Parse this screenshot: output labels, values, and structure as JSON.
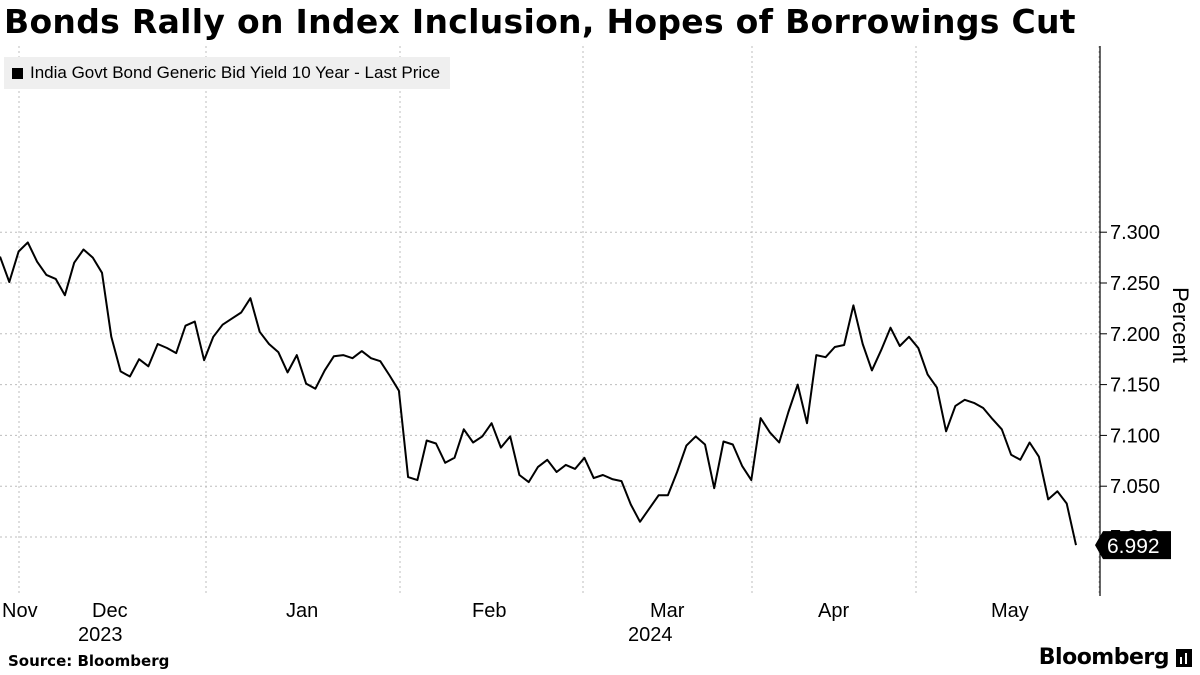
{
  "header": {
    "title": "Bonds Rally on Index Inclusion, Hopes of Borrowings Cut"
  },
  "footer": {
    "source": "Source: Bloomberg",
    "brand": "Bloomberg"
  },
  "chart_data": {
    "type": "line",
    "title": "Bonds Rally on Index Inclusion, Hopes of Borrowings Cut",
    "xlabel": "",
    "ylabel": "Percent",
    "ylim": [
      6.96,
      7.33
    ],
    "yticks": [
      7.0,
      7.05,
      7.1,
      7.15,
      7.2,
      7.25,
      7.3
    ],
    "ytick_labels": [
      "7.000",
      "7.050",
      "7.100",
      "7.150",
      "7.200",
      "7.250",
      "7.300"
    ],
    "grid": true,
    "legend_position": "top-left",
    "month_labels": [
      "Nov",
      "Dec",
      "Jan",
      "Feb",
      "Mar",
      "Apr",
      "May"
    ],
    "year_labels": [
      {
        "label": "2023",
        "under": "Dec"
      },
      {
        "label": "2024",
        "under": "Mar"
      }
    ],
    "last_value_label": "6.992",
    "series": [
      {
        "name": "India Govt Bond Generic Bid Yield 10 Year - Last Price",
        "color": "#000000",
        "values": [
          7.276,
          7.251,
          7.281,
          7.29,
          7.271,
          7.258,
          7.254,
          7.238,
          7.27,
          7.283,
          7.275,
          7.26,
          7.197,
          7.163,
          7.158,
          7.175,
          7.168,
          7.19,
          7.186,
          7.181,
          7.208,
          7.212,
          7.174,
          7.197,
          7.209,
          7.215,
          7.221,
          7.235,
          7.202,
          7.19,
          7.182,
          7.162,
          7.179,
          7.151,
          7.146,
          7.164,
          7.178,
          7.179,
          7.176,
          7.183,
          7.176,
          7.173,
          7.159,
          7.144,
          7.059,
          7.056,
          7.095,
          7.092,
          7.073,
          7.078,
          7.106,
          7.093,
          7.099,
          7.112,
          7.088,
          7.099,
          7.061,
          7.054,
          7.069,
          7.076,
          7.064,
          7.071,
          7.067,
          7.078,
          7.058,
          7.061,
          7.057,
          7.055,
          7.032,
          7.015,
          7.028,
          7.041,
          7.041,
          7.064,
          7.09,
          7.099,
          7.091,
          7.048,
          7.094,
          7.091,
          7.07,
          7.056,
          7.117,
          7.103,
          7.093,
          7.123,
          7.15,
          7.112,
          7.179,
          7.177,
          7.187,
          7.189,
          7.228,
          7.19,
          7.164,
          7.184,
          7.206,
          7.188,
          7.197,
          7.186,
          7.16,
          7.147,
          7.104,
          7.129,
          7.135,
          7.132,
          7.127,
          7.116,
          7.106,
          7.081,
          7.076,
          7.093,
          7.079,
          7.037,
          7.045,
          7.033,
          6.992
        ]
      }
    ]
  }
}
